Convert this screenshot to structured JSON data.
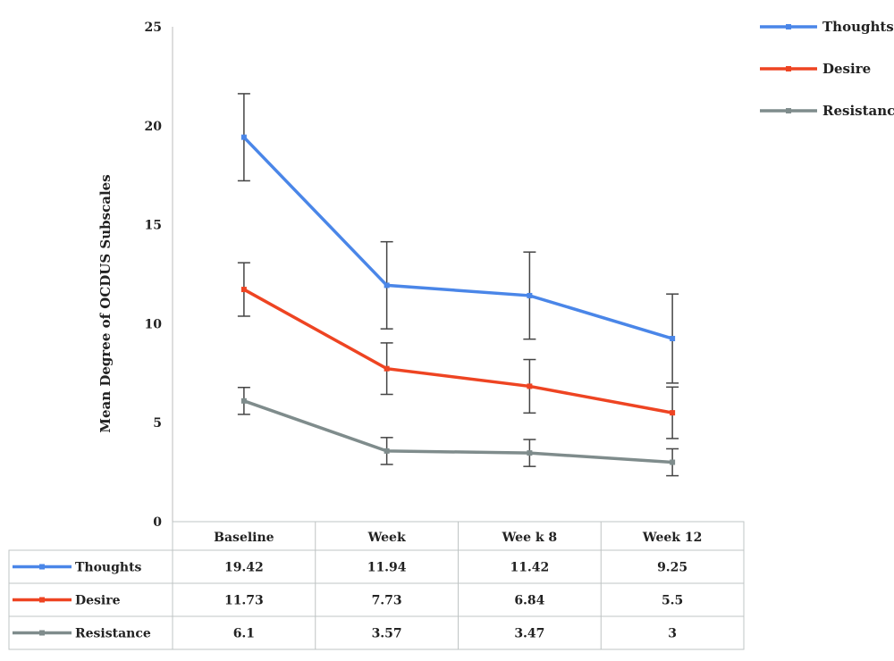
{
  "chart_data": {
    "type": "line",
    "title": "",
    "xlabel": "",
    "ylabel": "Mean Degree of OCDUS Subscales",
    "ylim": [
      0,
      25
    ],
    "yticks": [
      0,
      5,
      10,
      15,
      20,
      25
    ],
    "categories": [
      "Baseline",
      "Week",
      "Wee k 8",
      "Week 12"
    ],
    "grid": false,
    "legend_position": "top-right",
    "series": [
      {
        "name": "Thoughts",
        "color": "#4a86e8",
        "values": [
          19.42,
          11.94,
          11.42,
          9.25
        ],
        "errors": [
          2.2,
          2.2,
          2.2,
          2.25
        ],
        "marker": "diamond"
      },
      {
        "name": "Desire",
        "color": "#ee4422",
        "values": [
          11.73,
          7.73,
          6.84,
          5.5
        ],
        "errors": [
          1.35,
          1.3,
          1.35,
          1.3
        ],
        "marker": "square"
      },
      {
        "name": "Resistance",
        "color": "#7f8c8c",
        "values": [
          6.1,
          3.57,
          3.47,
          3
        ],
        "errors": [
          0.68,
          0.68,
          0.68,
          0.68
        ],
        "marker": "triangle"
      }
    ],
    "table": {
      "header": [
        "Baseline",
        "Week",
        "Wee k 8",
        "Week 12"
      ],
      "rows": [
        {
          "label": "Thoughts",
          "cells": [
            "19.42",
            "11.94",
            "11.42",
            "9.25"
          ]
        },
        {
          "label": "Desire",
          "cells": [
            "11.73",
            "7.73",
            "6.84",
            "5.5"
          ]
        },
        {
          "label": "Resistance",
          "cells": [
            "6.1",
            "3.57",
            "3.47",
            "3"
          ]
        }
      ]
    }
  }
}
